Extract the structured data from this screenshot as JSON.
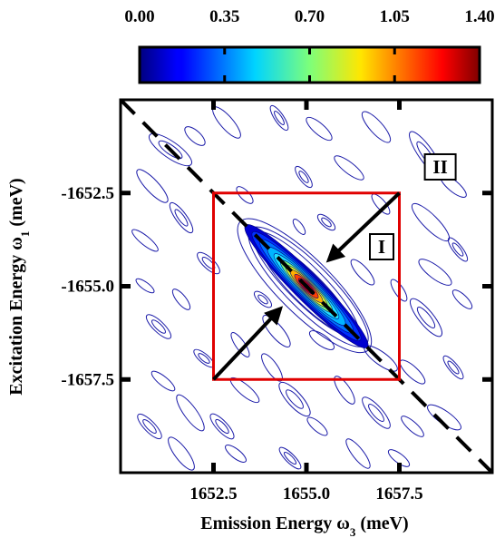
{
  "chart_data": {
    "type": "heatmap",
    "title": "",
    "xlabel": "Emission Energy ω",
    "xlabel_sub": "3",
    "xlabel_unit": " (meV)",
    "ylabel": "Excitation Energy ω",
    "ylabel_sub": "1",
    "ylabel_unit": " (meV)",
    "xlim": [
      1650.0,
      1660.0
    ],
    "ylim": [
      -1660.0,
      -1650.0
    ],
    "x_ticks": [
      1652.5,
      1655.0,
      1657.5
    ],
    "x_tick_labels": [
      "1652.5",
      "1655.0",
      "1657.5"
    ],
    "y_ticks": [
      -1652.5,
      -1655.0,
      -1657.5
    ],
    "y_tick_labels": [
      "-1652.5",
      "-1655.0",
      "-1657.5"
    ],
    "colorbar": {
      "min": 0.0,
      "max": 1.4,
      "ticks": [
        0.0,
        0.35,
        0.7,
        1.05,
        1.4
      ],
      "tick_labels": [
        "0.00",
        "0.35",
        "0.70",
        "1.05",
        "1.40"
      ],
      "colormap": "jet"
    },
    "peak": {
      "x": 1655.0,
      "y": -1655.0,
      "value": 1.4
    },
    "diagonal_line": {
      "style": "dashed",
      "color": "#000000",
      "from": [
        1650.0,
        -1650.0
      ],
      "to": [
        1660.0,
        -1660.0
      ]
    },
    "annotations": [
      {
        "type": "box",
        "label": "I",
        "color": "#e00000",
        "x_range": [
          1652.5,
          1657.5
        ],
        "y_range": [
          -1657.5,
          -1652.5
        ]
      },
      {
        "type": "text_box",
        "label": "II",
        "at": [
          1658.6,
          -1651.8
        ]
      },
      {
        "type": "arrow",
        "from": [
          1657.5,
          -1652.5
        ],
        "to": [
          1655.6,
          -1654.3
        ]
      },
      {
        "type": "arrow",
        "from": [
          1652.5,
          -1657.5
        ],
        "to": [
          1654.3,
          -1655.6
        ]
      }
    ],
    "grid": false
  },
  "colors": {
    "contour_line": "#1a1aa8",
    "box_I": "#e00000",
    "axis": "#000000"
  }
}
